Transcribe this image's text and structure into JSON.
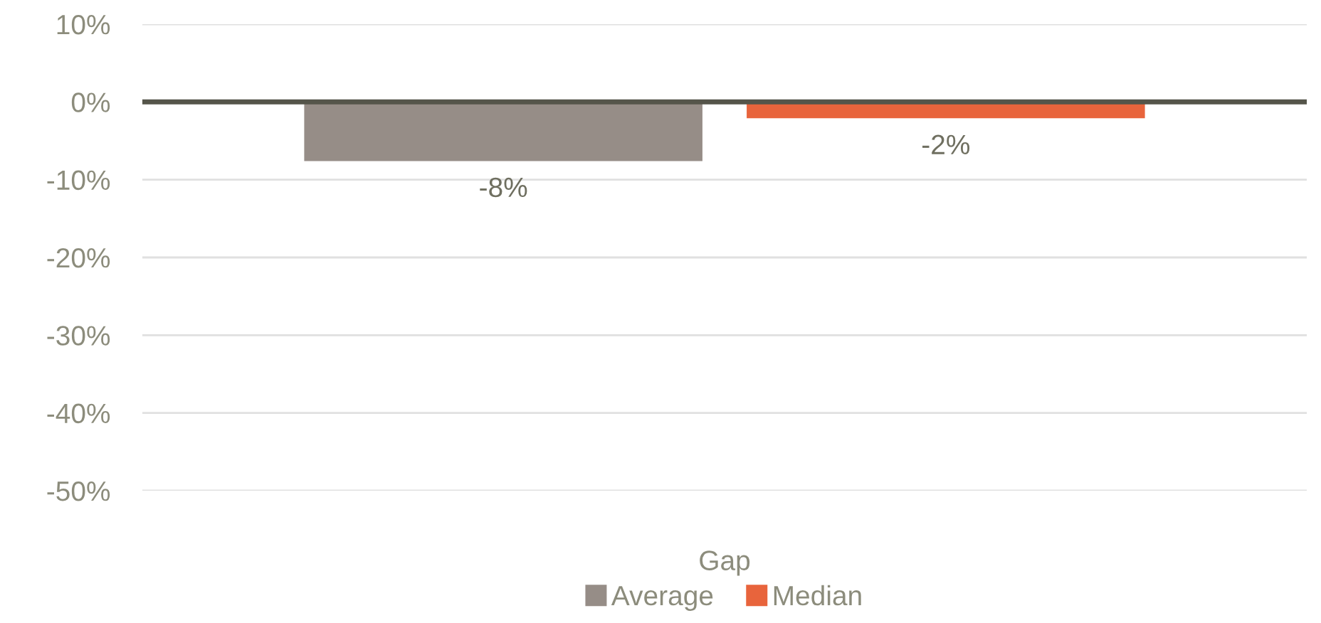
{
  "chart_data": {
    "type": "bar",
    "categories": [
      "Gap"
    ],
    "series": [
      {
        "name": "Average",
        "color": "#968d87",
        "values": [
          -7.6
        ],
        "value_labels": [
          "-8%"
        ]
      },
      {
        "name": "Median",
        "color": "#e8643c",
        "values": [
          -2.1
        ],
        "value_labels": [
          "-2%"
        ]
      }
    ],
    "ylim": [
      -50,
      10
    ],
    "yticks": [
      {
        "value": -50,
        "label": "-50%"
      },
      {
        "value": -40,
        "label": "-40%"
      },
      {
        "value": -30,
        "label": "-30%"
      },
      {
        "value": -20,
        "label": "-20%"
      },
      {
        "value": -10,
        "label": "-10%"
      },
      {
        "value": 0,
        "label": "0%"
      },
      {
        "value": 10,
        "label": "10%"
      }
    ],
    "grid": "y",
    "legend": "bottom"
  }
}
